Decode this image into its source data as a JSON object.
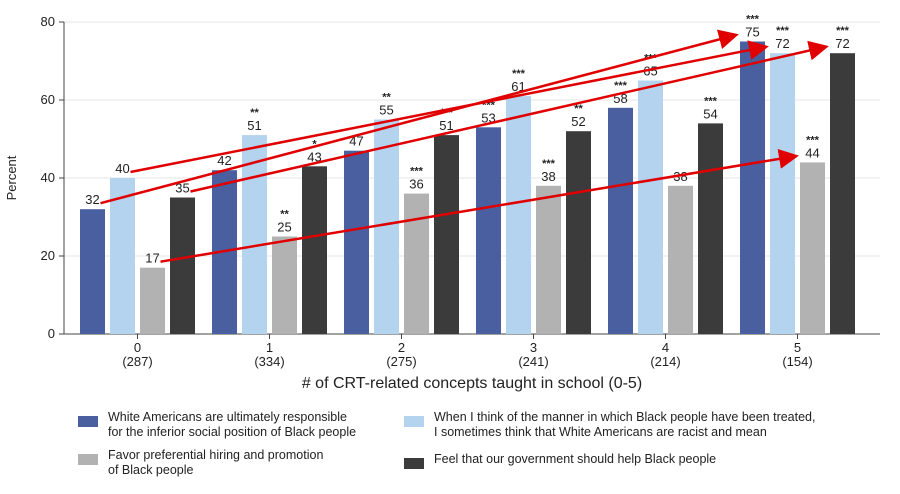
{
  "chart_data": {
    "type": "bar",
    "ylabel": "Percent",
    "xlabel": "# of CRT-related concepts taught in school (0-5)",
    "ylim": [
      0,
      80
    ],
    "yticks": [
      0,
      20,
      40,
      60,
      80
    ],
    "categories": [
      "0",
      "1",
      "2",
      "3",
      "4",
      "5"
    ],
    "category_counts": [
      "(287)",
      "(334)",
      "(275)",
      "(241)",
      "(214)",
      "(154)"
    ],
    "grid": true,
    "legend_position": "bottom",
    "series": [
      {
        "name": "White Americans are ultimately responsible\nfor the inferior social position of Black people",
        "color": "#4a5fa0",
        "values": [
          32,
          42,
          47,
          53,
          58,
          75
        ],
        "labels": [
          "32",
          "42",
          "47",
          "53",
          "58",
          "75"
        ],
        "significance": [
          "",
          "",
          "",
          "***",
          "***",
          "***"
        ]
      },
      {
        "name": "When I think of the manner in which Black people have been treated,\nI sometimes think that White Americans are racist and mean",
        "color": "#b3d3ee",
        "values": [
          40,
          51,
          55,
          61,
          65,
          72
        ],
        "labels": [
          "40",
          "51",
          "55",
          "61",
          "65",
          "72"
        ],
        "significance": [
          "",
          "**",
          "**",
          "***",
          "***",
          "***"
        ]
      },
      {
        "name": "Favor preferential hiring and promotion\nof Black people",
        "color": "#b2b2b2",
        "values": [
          17,
          25,
          36,
          38,
          38,
          44
        ],
        "labels": [
          "17",
          "25",
          "36",
          "38",
          "38",
          "44"
        ],
        "significance": [
          "",
          "**",
          "***",
          "***",
          "",
          "***"
        ]
      },
      {
        "name": "Feel that our government should help Black people",
        "color": "#3b3b3b",
        "values": [
          35,
          43,
          51,
          52,
          54,
          72
        ],
        "labels": [
          "35",
          "43",
          "51",
          "52",
          "54",
          "72"
        ],
        "significance": [
          "",
          "*",
          "***",
          "**",
          "***",
          "***"
        ]
      }
    ],
    "annotations": {
      "trend_arrows": [
        {
          "series": 0,
          "from_category": "0",
          "to_category": "5",
          "color": "#e00000"
        },
        {
          "series": 1,
          "from_category": "0",
          "to_category": "5",
          "color": "#e00000"
        },
        {
          "series": 2,
          "from_category": "0",
          "to_category": "5",
          "color": "#e00000"
        },
        {
          "series": 3,
          "from_category": "0",
          "to_category": "5",
          "color": "#e00000"
        }
      ]
    }
  }
}
